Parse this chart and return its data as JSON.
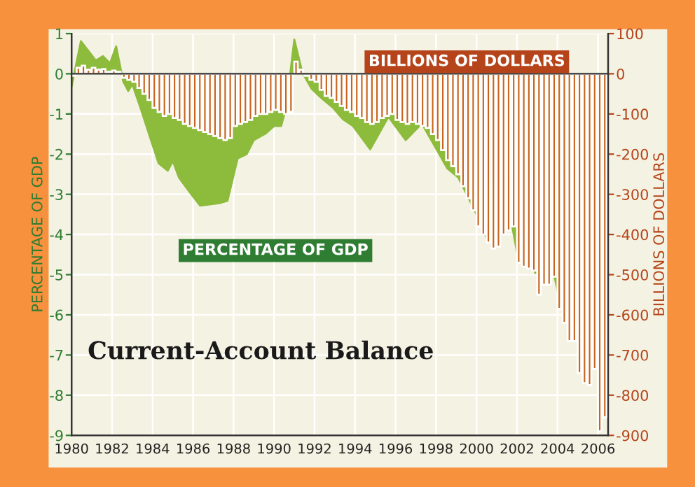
{
  "chart_data": {
    "type": "area",
    "title": "Current-Account Balance",
    "ylabel": "PERCENTAGE OF GDP",
    "y2label": "BILLIONS OF DOLLARS",
    "xlim": [
      1980,
      2006.5
    ],
    "xticks": [
      1980,
      1982,
      1984,
      1986,
      1988,
      1990,
      1992,
      1994,
      1996,
      1998,
      2000,
      2002,
      2004,
      2006
    ],
    "ylim": [
      -9,
      1
    ],
    "yticks": [
      -9,
      -8,
      -7,
      -6,
      -5,
      -4,
      -3,
      -2,
      -1,
      0,
      1
    ],
    "y2lim": [
      -900,
      100
    ],
    "y2ticks": [
      -900,
      -800,
      -700,
      -600,
      -500,
      -400,
      -300,
      -200,
      -100,
      0,
      100
    ],
    "grid": true,
    "legend": false,
    "series": [
      {
        "name": "PERCENTAGE OF GDP",
        "color": "#8dbb3c",
        "x": [
          1980.0,
          1980.46,
          1981.2,
          1981.55,
          1981.9,
          1982.2,
          1982.55,
          1982.8,
          1983.0,
          1983.4,
          1983.85,
          1984.3,
          1984.75,
          1985.0,
          1985.3,
          1985.9,
          1986.35,
          1987.3,
          1987.7,
          1988.2,
          1988.65,
          1989.0,
          1989.6,
          1990.0,
          1990.35,
          1990.6,
          1991.0,
          1991.4,
          1991.85,
          1992.35,
          1992.9,
          1993.4,
          1993.9,
          1994.75,
          1995.65,
          1996.5,
          1997.3,
          1997.9,
          1998.55,
          1999.1,
          1999.9,
          2000.6,
          2001.0,
          2001.65,
          2002.0,
          2002.25,
          2002.9,
          2003.6,
          2004.1,
          2004.6,
          2005.1,
          2005.4,
          2005.7,
          2006.0,
          2006.4
        ],
        "values": [
          -0.32,
          0.81,
          0.33,
          0.44,
          0.26,
          0.68,
          -0.19,
          -0.43,
          -0.26,
          -0.84,
          -1.54,
          -2.23,
          -2.41,
          -2.17,
          -2.58,
          -2.99,
          -3.28,
          -3.22,
          -3.16,
          -2.11,
          -2.0,
          -1.65,
          -1.48,
          -1.3,
          -1.3,
          -0.84,
          0.85,
          0.03,
          -0.37,
          -0.61,
          -0.84,
          -1.13,
          -1.3,
          -1.88,
          -1.07,
          -1.65,
          -1.24,
          -1.77,
          -2.35,
          -2.58,
          -3.39,
          -4.2,
          -4.2,
          -3.5,
          -4.44,
          -4.2,
          -4.96,
          -4.5,
          -5.6,
          -6.2,
          -6.2,
          -5.85,
          -6.9,
          -6.5,
          -6.6
        ]
      },
      {
        "name": "BILLIONS OF DOLLARS",
        "type": "bar",
        "axis": "y2",
        "color": "#c8641e",
        "x": [
          1980.0,
          1980.25,
          1980.5,
          1980.75,
          1981.0,
          1981.25,
          1981.5,
          1981.75,
          1982.0,
          1982.25,
          1982.5,
          1982.75,
          1983.0,
          1983.25,
          1983.5,
          1983.75,
          1984.0,
          1984.25,
          1984.5,
          1984.75,
          1985.0,
          1985.25,
          1985.5,
          1985.75,
          1986.0,
          1986.25,
          1986.5,
          1986.75,
          1987.0,
          1987.25,
          1987.5,
          1987.75,
          1988.0,
          1988.25,
          1988.5,
          1988.75,
          1989.0,
          1989.25,
          1989.5,
          1989.75,
          1990.0,
          1990.25,
          1990.5,
          1990.75,
          1991.0,
          1991.25,
          1991.5,
          1991.75,
          1992.0,
          1992.25,
          1992.5,
          1992.75,
          1993.0,
          1993.25,
          1993.5,
          1993.75,
          1994.0,
          1994.25,
          1994.5,
          1994.75,
          1995.0,
          1995.25,
          1995.5,
          1995.75,
          1996.0,
          1996.25,
          1996.5,
          1996.75,
          1997.0,
          1997.25,
          1997.5,
          1997.75,
          1998.0,
          1998.25,
          1998.5,
          1998.75,
          1999.0,
          1999.25,
          1999.5,
          1999.75,
          2000.0,
          2000.25,
          2000.5,
          2000.75,
          2001.0,
          2001.25,
          2001.5,
          2001.75,
          2002.0,
          2002.25,
          2002.5,
          2002.75,
          2003.0,
          2003.25,
          2003.5,
          2003.75,
          2004.0,
          2004.25,
          2004.5,
          2004.75,
          2005.0,
          2005.25,
          2005.5,
          2005.75,
          2006.0,
          2006.25
        ],
        "values": [
          -5,
          15,
          20,
          10,
          15,
          10,
          12,
          5,
          8,
          5,
          -10,
          -15,
          -20,
          -35,
          -50,
          -65,
          -85,
          -95,
          -105,
          -100,
          -110,
          -115,
          -125,
          -130,
          -135,
          -140,
          -145,
          -150,
          -155,
          -160,
          -165,
          -160,
          -130,
          -125,
          -120,
          -115,
          -105,
          -100,
          -100,
          -95,
          -90,
          -95,
          -100,
          -95,
          30,
          10,
          -5,
          -15,
          -20,
          -40,
          -55,
          -60,
          -70,
          -80,
          -90,
          -95,
          -105,
          -110,
          -120,
          -125,
          -120,
          -110,
          -105,
          -100,
          -115,
          -120,
          -125,
          -120,
          -125,
          -130,
          -135,
          -150,
          -165,
          -190,
          -215,
          -230,
          -250,
          -280,
          -310,
          -340,
          -380,
          -400,
          -420,
          -435,
          -430,
          -400,
          -390,
          -380,
          -470,
          -480,
          -485,
          -490,
          -550,
          -525,
          -525,
          -505,
          -585,
          -620,
          -665,
          -665,
          -745,
          -770,
          -775,
          -735,
          -890,
          -855
        ]
      }
    ]
  }
}
